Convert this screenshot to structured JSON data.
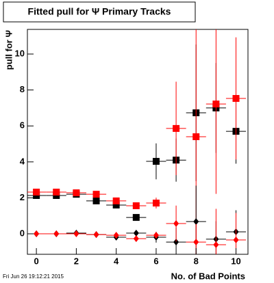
{
  "chart_data": {
    "type": "errorbar",
    "title": "Fitted pull for  Ψ  Primary Tracks",
    "x_label": "No. of Bad Points",
    "y_label": "pull for  Ψ",
    "footer": "Fri Jun 26 19:12:21 2015",
    "x": [
      0,
      1,
      2,
      3,
      4,
      5,
      6,
      7,
      8,
      9,
      10
    ],
    "xlim": [
      -0.45,
      10.6
    ],
    "ylim": [
      -1.14,
      11.37
    ],
    "xticks": [
      0,
      2,
      4,
      6,
      8,
      10
    ],
    "yticks": [
      0,
      2,
      4,
      6,
      8,
      10
    ],
    "series": [
      {
        "color": "#000000",
        "marker": "square",
        "xerr": 0.5,
        "values": [
          2.13,
          2.13,
          2.2,
          1.83,
          1.6,
          0.91,
          4.03,
          4.1,
          6.73,
          7.0,
          5.7
        ],
        "errors": [
          0.05,
          0.05,
          0.06,
          0.08,
          0.1,
          0.15,
          1.0,
          1.2,
          3.8,
          2.5,
          1.8
        ]
      },
      {
        "color": "#ff0000",
        "marker": "square",
        "xerr": 0.5,
        "values": [
          2.32,
          2.32,
          2.28,
          2.2,
          1.83,
          1.56,
          1.71,
          5.86,
          5.4,
          7.22,
          7.53
        ],
        "errors": [
          0.05,
          0.05,
          0.06,
          0.08,
          0.1,
          0.15,
          0.3,
          2.6,
          6.0,
          5.0,
          3.4
        ]
      },
      {
        "color": "#000000",
        "marker": "diamond",
        "xerr": 0.5,
        "values": [
          0,
          0,
          0.04,
          -0.04,
          -0.19,
          0.04,
          -0.19,
          -0.46,
          0.68,
          -0.3,
          0.11
        ],
        "errors": [
          0.05,
          0.05,
          0.05,
          0.05,
          0.05,
          0.05,
          0.3,
          0.8,
          2.0,
          1.0,
          1.2
        ]
      },
      {
        "color": "#ff0000",
        "marker": "diamond",
        "xerr": 0.5,
        "values": [
          0,
          0,
          0,
          -0.04,
          -0.08,
          -0.27,
          -0.08,
          0.57,
          -0.46,
          -0.61,
          -0.34
        ],
        "errors": [
          0.05,
          0.05,
          0.05,
          0.05,
          0.05,
          0.05,
          0.1,
          1.0,
          1.0,
          2.0,
          1.5
        ]
      }
    ]
  }
}
